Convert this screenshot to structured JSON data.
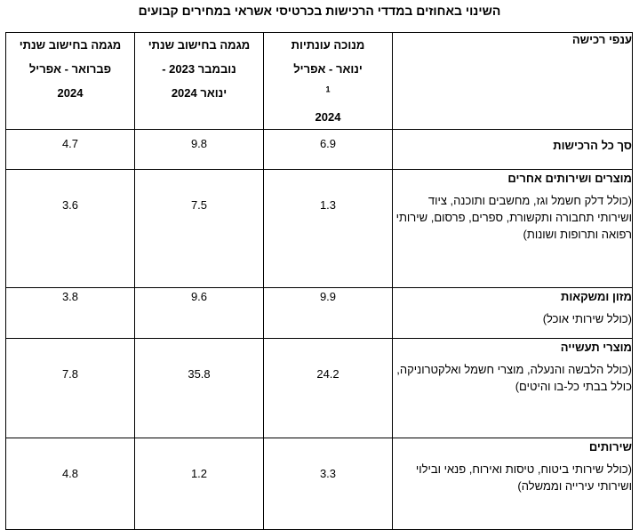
{
  "title": "השינוי באחוזים במדדי הרכישות בכרטיסי אשראי במחירים קבועים",
  "headers": {
    "branch": "ענפי רכישה",
    "col1": [
      "מנוכה עונתיות",
      "ינואר - אפריל",
      "2024"
    ],
    "col1_footnote": "1",
    "col2": [
      "מגמה בחישוב שנתי",
      "נובמבר 2023 -",
      "ינואר  2024"
    ],
    "col3": [
      "מגמה בחישוב שנתי",
      "פברואר -  אפריל",
      "2024"
    ]
  },
  "rows": [
    {
      "name": "סך כל הרכישות",
      "desc": "",
      "v1": "6.9",
      "v2": "9.8",
      "v3": "4.7"
    },
    {
      "name": "מוצרים ושירותים אחרים",
      "desc": "(כולל דלק חשמל וגז, מחשבים ותוכנה, ציוד ושירותי תחבורה ותקשורת, ספרים, פרסום, שירותי רפואה ותרופות ושונות)",
      "v1": "1.3",
      "v2": "7.5",
      "v3": "3.6"
    },
    {
      "name": "מזון ומשקאות",
      "desc": "(כולל שירותי אוכל)",
      "v1": "9.9",
      "v2": "9.6",
      "v3": "3.8"
    },
    {
      "name": "מוצרי תעשייה",
      "desc": "(כולל הלבשה והנעלה, מוצרי חשמל ואלקטרוניקה, כולל בבתי כל-בו והיטים)",
      "v1": "24.2",
      "v2": "35.8",
      "v3": "7.8"
    },
    {
      "name": "שירותים",
      "desc": "(כולל שירותי ביטוח, טיסות ואירוח, פנאי ובילוי ושירותי עירייה וממשלה)",
      "v1": "3.3",
      "v2": "1.2",
      "v3": "4.8"
    }
  ]
}
